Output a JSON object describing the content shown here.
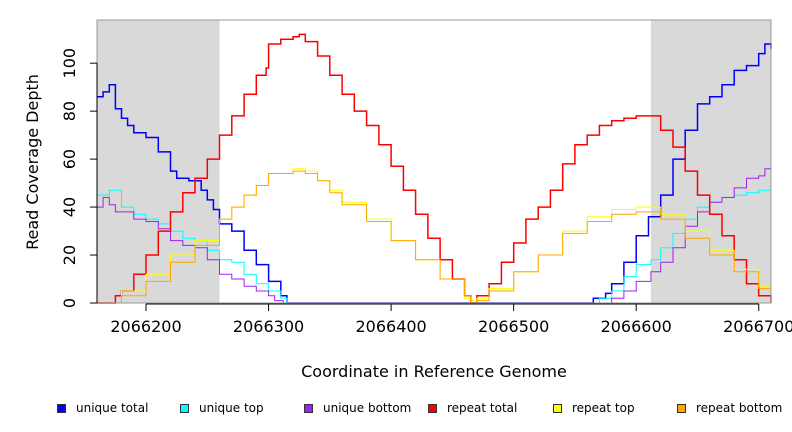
{
  "chart_data": {
    "type": "line",
    "title": "",
    "xlabel": "Coordinate in Reference Genome",
    "ylabel": "Read Coverage Depth",
    "xlim": [
      2066160,
      2066710
    ],
    "ylim": [
      0,
      118
    ],
    "x_ticks": [
      2066200,
      2066300,
      2066400,
      2066500,
      2066600,
      2066700
    ],
    "y_ticks": [
      0,
      20,
      40,
      60,
      80,
      100
    ],
    "shaded_regions": [
      [
        2066160,
        2066260
      ],
      [
        2066612,
        2066710
      ]
    ],
    "shade_color": "#d9d9d9",
    "legend_position": "bottom",
    "series": [
      {
        "name": "unique total",
        "color": "#0000ff",
        "width": 1.5,
        "x": [
          2066160,
          2066165,
          2066170,
          2066175,
          2066180,
          2066185,
          2066190,
          2066200,
          2066210,
          2066220,
          2066225,
          2066235,
          2066245,
          2066250,
          2066255,
          2066260,
          2066270,
          2066280,
          2066290,
          2066300,
          2066310,
          2066315,
          2066560,
          2066565,
          2066575,
          2066580,
          2066590,
          2066600,
          2066610,
          2066620,
          2066630,
          2066640,
          2066650,
          2066660,
          2066670,
          2066680,
          2066690,
          2066700,
          2066705,
          2066710
        ],
        "y": [
          86,
          88,
          91,
          81,
          77,
          74,
          71,
          69,
          63,
          55,
          52,
          51,
          47,
          43,
          39,
          33,
          30,
          22,
          16,
          9,
          3,
          0,
          0,
          2,
          4,
          8,
          17,
          28,
          36,
          45,
          60,
          72,
          83,
          86,
          91,
          97,
          99,
          104,
          108,
          106
        ]
      },
      {
        "name": "unique top",
        "color": "#00ffff",
        "width": 1,
        "x": [
          2066160,
          2066170,
          2066180,
          2066190,
          2066200,
          2066210,
          2066220,
          2066230,
          2066240,
          2066250,
          2066260,
          2066270,
          2066280,
          2066290,
          2066300,
          2066310,
          2066315,
          2066560,
          2066570,
          2066580,
          2066590,
          2066600,
          2066612,
          2066620,
          2066630,
          2066640,
          2066650,
          2066660,
          2066670,
          2066680,
          2066690,
          2066700,
          2066710
        ],
        "y": [
          45,
          47,
          40,
          37,
          35,
          33,
          30,
          27,
          26,
          22,
          18,
          17,
          12,
          8,
          5,
          2,
          0,
          0,
          2,
          5,
          11,
          16,
          18,
          23,
          29,
          35,
          40,
          42,
          44,
          45,
          46,
          47,
          52
        ]
      },
      {
        "name": "unique bottom",
        "color": "#a020f0",
        "width": 1,
        "x": [
          2066160,
          2066165,
          2066170,
          2066175,
          2066190,
          2066200,
          2066210,
          2066220,
          2066230,
          2066240,
          2066250,
          2066260,
          2066270,
          2066280,
          2066290,
          2066300,
          2066305,
          2066312,
          2066570,
          2066580,
          2066590,
          2066600,
          2066612,
          2066620,
          2066630,
          2066640,
          2066650,
          2066660,
          2066670,
          2066680,
          2066690,
          2066700,
          2066705,
          2066710
        ],
        "y": [
          40,
          44,
          41,
          38,
          35,
          34,
          31,
          26,
          24,
          23,
          18,
          12,
          10,
          7,
          5,
          3,
          1,
          0,
          0,
          2,
          5,
          9,
          13,
          17,
          23,
          32,
          38,
          42,
          44,
          48,
          52,
          53,
          56,
          55
        ]
      },
      {
        "name": "repeat total",
        "color": "#ff0000",
        "width": 1.5,
        "x": [
          2066160,
          2066170,
          2066175,
          2066180,
          2066190,
          2066200,
          2066210,
          2066220,
          2066230,
          2066240,
          2066250,
          2066260,
          2066270,
          2066280,
          2066290,
          2066298,
          2066300,
          2066310,
          2066320,
          2066325,
          2066330,
          2066340,
          2066350,
          2066360,
          2066370,
          2066380,
          2066390,
          2066400,
          2066410,
          2066420,
          2066430,
          2066440,
          2066450,
          2066460,
          2066465,
          2066470,
          2066480,
          2066490,
          2066500,
          2066510,
          2066520,
          2066530,
          2066540,
          2066550,
          2066560,
          2066570,
          2066580,
          2066590,
          2066600,
          2066610,
          2066620,
          2066630,
          2066640,
          2066650,
          2066660,
          2066670,
          2066680,
          2066690,
          2066700,
          2066710
        ],
        "y": [
          0,
          0,
          3,
          5,
          12,
          20,
          30,
          38,
          46,
          52,
          60,
          70,
          78,
          87,
          95,
          98,
          108,
          110,
          111,
          112,
          109,
          103,
          95,
          87,
          80,
          74,
          66,
          57,
          47,
          37,
          27,
          18,
          10,
          3,
          0,
          3,
          8,
          17,
          25,
          35,
          40,
          47,
          58,
          66,
          70,
          74,
          76,
          77,
          78,
          78,
          72,
          65,
          55,
          45,
          37,
          28,
          18,
          8,
          3,
          0
        ]
      },
      {
        "name": "repeat top",
        "color": "#ffff00",
        "width": 1,
        "x": [
          2066160,
          2066170,
          2066180,
          2066200,
          2066220,
          2066240,
          2066260,
          2066270,
          2066280,
          2066290,
          2066300,
          2066320,
          2066330,
          2066340,
          2066350,
          2066360,
          2066380,
          2066400,
          2066420,
          2066440,
          2066460,
          2066465,
          2066470,
          2066480,
          2066500,
          2066520,
          2066540,
          2066560,
          2066580,
          2066600,
          2066612,
          2066620,
          2066640,
          2066660,
          2066680,
          2066700,
          2066710
        ],
        "y": [
          0,
          0,
          5,
          12,
          20,
          26,
          35,
          40,
          45,
          49,
          54,
          56,
          55,
          51,
          47,
          42,
          35,
          26,
          18,
          10,
          2,
          1,
          2,
          6,
          13,
          20,
          30,
          36,
          39,
          40,
          40,
          37,
          30,
          22,
          14,
          7,
          0
        ]
      },
      {
        "name": "repeat bottom",
        "color": "#ffa500",
        "width": 1,
        "x": [
          2066160,
          2066170,
          2066180,
          2066200,
          2066220,
          2066240,
          2066260,
          2066270,
          2066280,
          2066290,
          2066300,
          2066320,
          2066330,
          2066340,
          2066350,
          2066360,
          2066380,
          2066400,
          2066420,
          2066440,
          2066460,
          2066465,
          2066470,
          2066480,
          2066500,
          2066520,
          2066540,
          2066560,
          2066580,
          2066600,
          2066612,
          2066620,
          2066640,
          2066660,
          2066680,
          2066700,
          2066710
        ],
        "y": [
          0,
          0,
          3,
          9,
          17,
          24,
          35,
          40,
          45,
          49,
          54,
          55,
          54,
          51,
          46,
          41,
          34,
          26,
          18,
          10,
          3,
          0,
          1,
          5,
          13,
          20,
          29,
          34,
          37,
          38,
          38,
          35,
          27,
          20,
          13,
          6,
          0
        ]
      }
    ]
  },
  "legend": [
    {
      "label": "unique total",
      "color": "#0000ff"
    },
    {
      "label": "unique top",
      "color": "#00ffff"
    },
    {
      "label": "unique bottom",
      "color": "#a020f0"
    },
    {
      "label": "repeat total",
      "color": "#ff0000"
    },
    {
      "label": "repeat top",
      "color": "#ffff00"
    },
    {
      "label": "repeat bottom",
      "color": "#ffa500"
    }
  ]
}
